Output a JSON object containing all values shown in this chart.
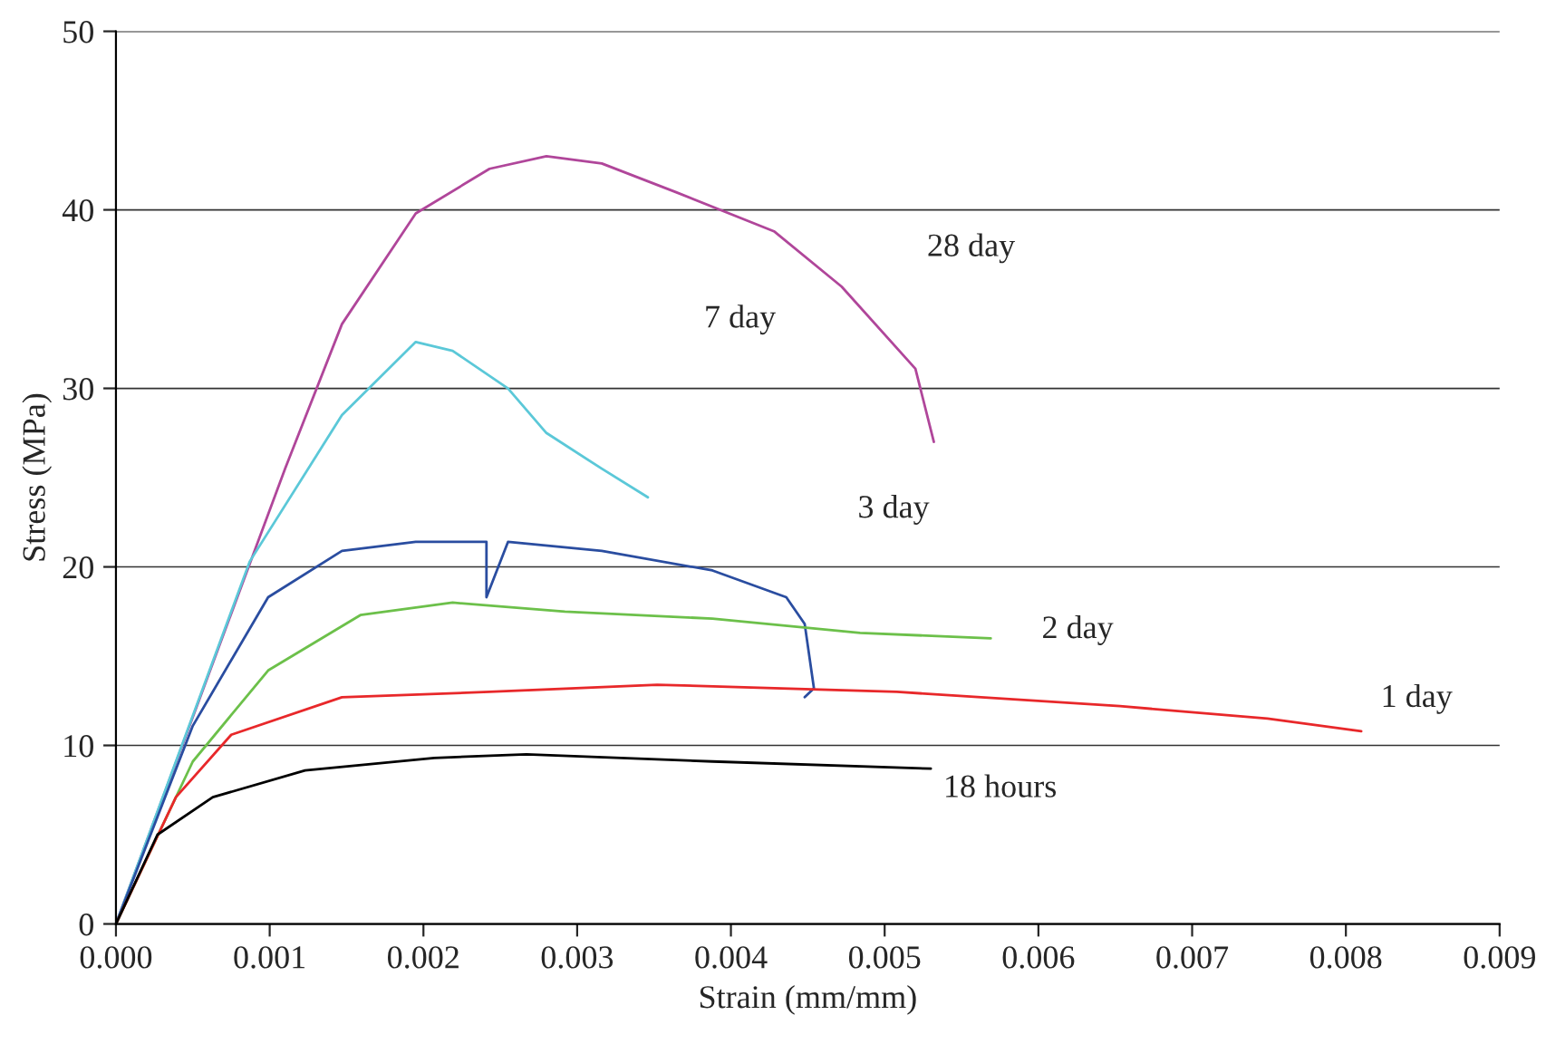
{
  "chart_data": {
    "type": "line",
    "xlabel": "Strain (mm/mm)",
    "ylabel": "Stress (MPa)",
    "xlim": [
      0,
      0.009
    ],
    "ylim": [
      0,
      50
    ],
    "xticks": [
      {
        "value": 0,
        "label": "0.000"
      },
      {
        "value": 0.001,
        "label": "0.001"
      },
      {
        "value": 0.002,
        "label": "0.002"
      },
      {
        "value": 0.003,
        "label": "0.003"
      },
      {
        "value": 0.004,
        "label": "0.004"
      },
      {
        "value": 0.005,
        "label": "0.005"
      },
      {
        "value": 0.006,
        "label": "0.006"
      },
      {
        "value": 0.007,
        "label": "0.007"
      },
      {
        "value": 0.008,
        "label": "0.008"
      },
      {
        "value": 0.009,
        "label": "0.009"
      }
    ],
    "yticks": [
      0,
      10,
      20,
      30,
      40,
      50
    ],
    "grid": "y",
    "legend": false,
    "marker": "none",
    "line_style": "solid",
    "series": [
      {
        "color": "#b0469a",
        "x": [
          0,
          0.0011,
          0.00147,
          0.00195,
          0.00243,
          0.0028,
          0.00316,
          0.00364,
          0.00428,
          0.00472,
          0.0052,
          0.00532
        ],
        "values": [
          0,
          25.5,
          33.6,
          39.8,
          42.3,
          43,
          42.6,
          41,
          38.8,
          35.7,
          31.1,
          27
        ]
      },
      {
        "color": "#5bc8d8",
        "x": [
          0,
          0.00087,
          0.00147,
          0.00195,
          0.00219,
          0.00255,
          0.0028,
          0.00316,
          0.00346
        ],
        "values": [
          0,
          20.3,
          28.5,
          32.6,
          32.1,
          30,
          27.5,
          25.5,
          23.9
        ]
      },
      {
        "color": "#2a4da0",
        "x": [
          0,
          0.0005,
          0.00099,
          0.00147,
          0.00195,
          0.00241,
          0.00241,
          0.00255,
          0.00316,
          0.00388,
          0.00436,
          0.00448,
          0.00454,
          0.00448
        ],
        "values": [
          0,
          11.1,
          18.3,
          20.9,
          21.4,
          21.4,
          18.3,
          21.4,
          20.9,
          19.8,
          18.3,
          16.8,
          13.2,
          12.7
        ]
      },
      {
        "color": "#6cc04a",
        "x": [
          0,
          0.0005,
          0.00099,
          0.00159,
          0.00219,
          0.00292,
          0.00388,
          0.00484,
          0.00569
        ],
        "values": [
          0,
          9.1,
          14.2,
          17.3,
          18,
          17.5,
          17.1,
          16.3,
          16
        ]
      },
      {
        "color": "#e8282a",
        "x": [
          0,
          0.00039,
          0.00075,
          0.00147,
          0.00243,
          0.00352,
          0.00508,
          0.00653,
          0.00749,
          0.0081
        ],
        "values": [
          0,
          7.1,
          10.6,
          12.7,
          13,
          13.4,
          13,
          12.2,
          11.5,
          10.8
        ]
      },
      {
        "color": "#000000",
        "x": [
          0,
          0.00027,
          0.00063,
          0.00123,
          0.00207,
          0.00267,
          0.00388,
          0.0053
        ],
        "values": [
          0,
          5,
          7.1,
          8.6,
          9.3,
          9.5,
          9.1,
          8.7
        ]
      }
    ],
    "annotations": [
      "28 day",
      "7 day",
      "3 day",
      "2 day",
      "1 day",
      "18 hours"
    ]
  }
}
